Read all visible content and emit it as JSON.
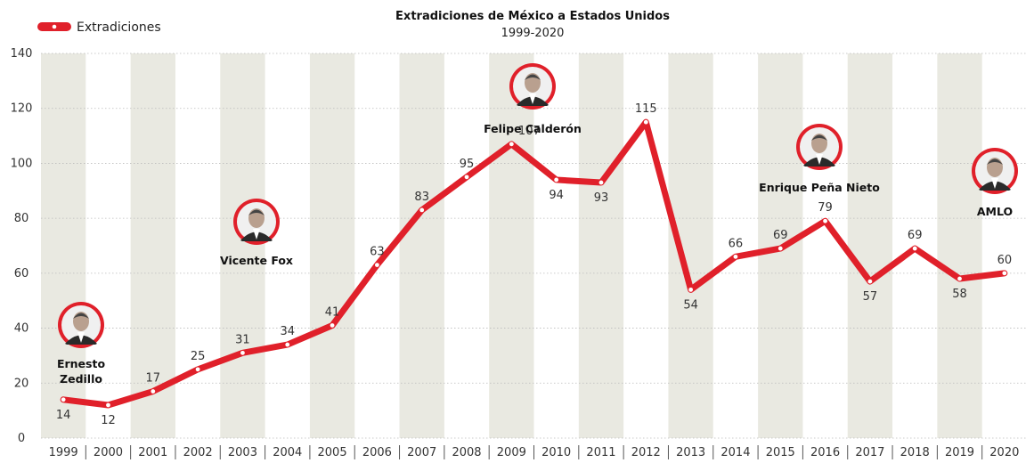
{
  "chart_data": {
    "type": "line",
    "title": "Extradiciones de México a Estados Unidos",
    "subtitle": "1999-2020",
    "xlabel": "",
    "ylabel": "",
    "x": [
      "1999",
      "2000",
      "2001",
      "2002",
      "2003",
      "2004",
      "2005",
      "2006",
      "2007",
      "2008",
      "2009",
      "2010",
      "2011",
      "2012",
      "2013",
      "2014",
      "2015",
      "2016",
      "2017",
      "2018",
      "2019",
      "2020"
    ],
    "ylim": [
      0,
      140
    ],
    "yticks": [
      0,
      20,
      40,
      60,
      80,
      100,
      120,
      140
    ],
    "grid": "horizontal-dotted",
    "legend": "top-left",
    "series": [
      {
        "name": "Extradiciones",
        "color": "#e0202a",
        "values": [
          14,
          12,
          17,
          25,
          31,
          34,
          41,
          63,
          83,
          95,
          107,
          94,
          93,
          115,
          54,
          66,
          69,
          79,
          57,
          69,
          58,
          60
        ]
      }
    ],
    "presidents": [
      {
        "name": "Ernesto Zedillo",
        "lines": [
          "Ernesto",
          "Zedillo"
        ],
        "icon": "president-portrait-icon"
      },
      {
        "name": "Vicente Fox",
        "lines": [
          "Vicente Fox"
        ],
        "icon": "president-portrait-icon"
      },
      {
        "name": "Felipe Calderón",
        "lines": [
          "Felipe Calderón"
        ],
        "icon": "president-portrait-icon"
      },
      {
        "name": "Enrique Peña Nieto",
        "lines": [
          "Enrique Peña Nieto"
        ],
        "icon": "president-portrait-icon"
      },
      {
        "name": "AMLO",
        "lines": [
          "AMLO"
        ],
        "icon": "president-portrait-icon"
      }
    ],
    "colors": {
      "line": "#e0202a",
      "shade": "#e9e9e1",
      "grid": "#bbbbbb",
      "portrait_ring": "#e0202a"
    }
  }
}
